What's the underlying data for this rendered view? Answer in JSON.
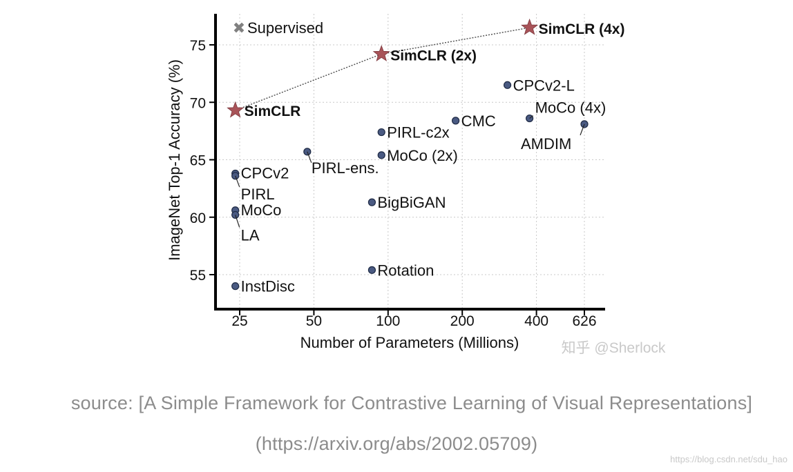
{
  "chart_data": {
    "type": "scatter",
    "title": "",
    "xlabel": "Number of Parameters (Millions)",
    "ylabel": "ImageNet Top-1 Accuracy (%)",
    "xscale": "log",
    "xlim": [
      20,
      700
    ],
    "ylim": [
      53,
      77
    ],
    "xticks": [
      25,
      50,
      100,
      200,
      400,
      626
    ],
    "yticks": [
      55,
      60,
      65,
      70,
      75
    ],
    "grid": true,
    "legend": {
      "label": "Supervised",
      "placement": "top-left",
      "marker": "x"
    },
    "series": [
      {
        "name": "SimCLR",
        "marker": "star",
        "color": "#a85358",
        "connected": true,
        "points": [
          {
            "label": "SimCLR",
            "x": 24,
            "y": 69.3
          },
          {
            "label": "SimCLR (2x)",
            "x": 94,
            "y": 74.2
          },
          {
            "label": "SimCLR (4x)",
            "x": 375,
            "y": 76.5
          }
        ]
      },
      {
        "marker": "circle",
        "color": "#4a5a82",
        "points": [
          {
            "label": "CPCv2-L",
            "x": 305,
            "y": 71.5
          },
          {
            "label": "MoCo (4x)",
            "x": 375,
            "y": 68.6
          },
          {
            "label": "AMDIM",
            "x": 626,
            "y": 68.1
          },
          {
            "label": "CMC",
            "x": 188,
            "y": 68.4
          },
          {
            "label": "PIRL-c2x",
            "x": 94,
            "y": 67.4
          },
          {
            "label": "MoCo (2x)",
            "x": 94,
            "y": 65.4
          },
          {
            "label": "PIRL-ens.",
            "x": 47,
            "y": 65.7
          },
          {
            "label": "CPCv2",
            "x": 24,
            "y": 63.8
          },
          {
            "label": "PIRL",
            "x": 24,
            "y": 63.6
          },
          {
            "label": "BigBiGAN",
            "x": 86,
            "y": 61.3
          },
          {
            "label": "MoCo",
            "x": 24,
            "y": 60.6
          },
          {
            "label": "LA",
            "x": 24,
            "y": 60.2
          },
          {
            "label": "Rotation",
            "x": 86,
            "y": 55.4
          },
          {
            "label": "InstDisc",
            "x": 24,
            "y": 54.0
          }
        ]
      }
    ],
    "colors": {
      "star": "#a85358",
      "circle": "#4a5a82",
      "supervised": "#808080",
      "axis": "#000000",
      "grid": "#c8c8c8"
    }
  },
  "watermark_chart": "知乎 @Sherlock",
  "caption": {
    "source": "source: [A Simple Framework for Contrastive Learning of Visual Representations]",
    "url": "(https://arxiv.org/abs/2002.05709)"
  },
  "watermark_corner": "https://blog.csdn.net/sdu_hao"
}
